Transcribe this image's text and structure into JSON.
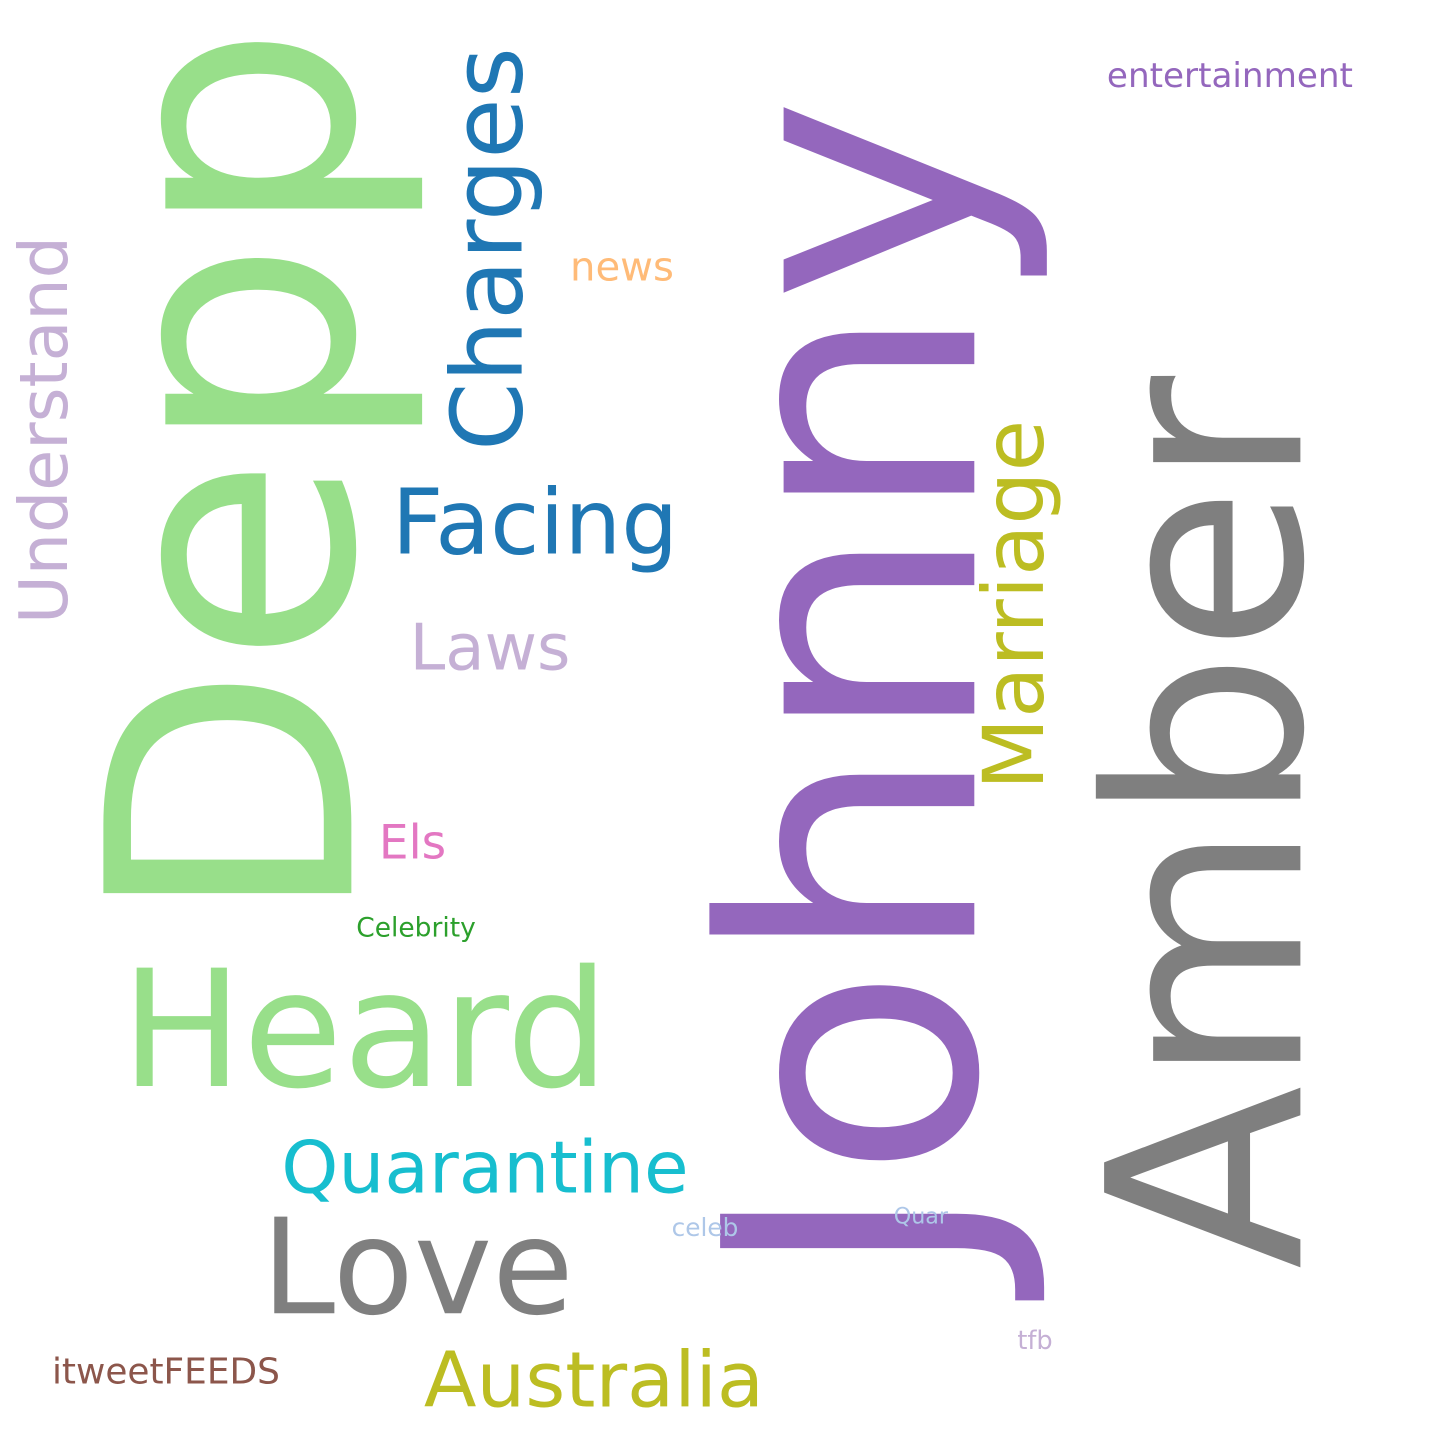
{
  "words": [
    {
      "id": "johnny",
      "text": "Johnny",
      "color": "#9467bd"
    },
    {
      "id": "depp",
      "text": "Depp",
      "color": "#98df8a"
    },
    {
      "id": "amber",
      "text": "Amber",
      "color": "#7f7f7f"
    },
    {
      "id": "heard",
      "text": "Heard",
      "color": "#98df8a"
    },
    {
      "id": "love",
      "text": "Love",
      "color": "#7f7f7f"
    },
    {
      "id": "charges",
      "text": "Charges",
      "color": "#1f77b4"
    },
    {
      "id": "facing",
      "text": "Facing",
      "color": "#1f77b4"
    },
    {
      "id": "understand",
      "text": "Understand",
      "color": "#c5b0d5"
    },
    {
      "id": "marriage",
      "text": "Marriage",
      "color": "#bcbd22"
    },
    {
      "id": "quarantine",
      "text": "Quarantine",
      "color": "#17becf"
    },
    {
      "id": "australia",
      "text": "Australia",
      "color": "#bcbd22"
    },
    {
      "id": "laws",
      "text": "Laws",
      "color": "#c5b0d5"
    },
    {
      "id": "entertainment",
      "text": "entertainment",
      "color": "#9467bd"
    },
    {
      "id": "news",
      "text": "news",
      "color": "#ffbb78"
    },
    {
      "id": "els",
      "text": "Els",
      "color": "#e377c2"
    },
    {
      "id": "celebrity",
      "text": "Celebrity",
      "color": "#2ca02c"
    },
    {
      "id": "itweetfeeds",
      "text": "itweetFEEDS",
      "color": "#8c564b"
    },
    {
      "id": "celeb",
      "text": "celeb",
      "color": "#aec7e8"
    },
    {
      "id": "quar",
      "text": "Quar",
      "color": "#aec7e8"
    },
    {
      "id": "tfb",
      "text": "tfb",
      "color": "#c5b0d5"
    }
  ]
}
